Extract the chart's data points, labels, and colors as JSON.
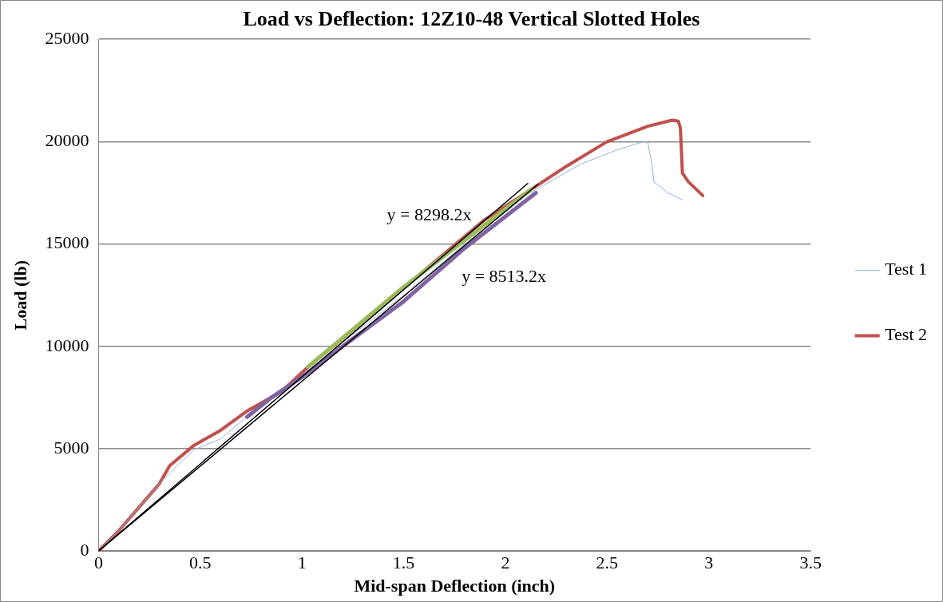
{
  "chart_data": {
    "type": "line",
    "title": "Load vs Deflection: 12Z10-48 Vertical Slotted Holes",
    "xlabel": "Mid-span Deflection (inch)",
    "ylabel": "Load (lb)",
    "xlim": [
      0,
      3.5
    ],
    "xticks": [
      0,
      0.5,
      1,
      1.5,
      2,
      2.5,
      3,
      3.5
    ],
    "ylim": [
      0,
      25000
    ],
    "yticks": [
      0,
      5000,
      10000,
      15000,
      20000,
      25000
    ],
    "grid": "y",
    "legend": "right",
    "marker": "none",
    "line_style": "solid",
    "series": [
      {
        "name": "Test 1",
        "color": "#95b3d7",
        "x": [
          0,
          0.1,
          0.2,
          0.3,
          0.4,
          0.47,
          0.6,
          0.72,
          0.85,
          1.0,
          1.2,
          1.5,
          1.8,
          2.115,
          2.37,
          2.55,
          2.68,
          2.7,
          2.72,
          2.73,
          2.8,
          2.87
        ],
        "values": [
          0,
          1000,
          2150,
          3300,
          4300,
          4950,
          5480,
          6490,
          7500,
          8600,
          10200,
          12500,
          15000,
          17460,
          18900,
          19600,
          20000,
          19960,
          18900,
          18030,
          17500,
          17150
        ]
      },
      {
        "name": "Test 2",
        "color": "#c0504d",
        "x": [
          0,
          0.1,
          0.2,
          0.3,
          0.35,
          0.47,
          0.6,
          0.73,
          0.9,
          1.03,
          1.3,
          1.6,
          1.9,
          2.115,
          2.3,
          2.5,
          2.7,
          2.82,
          2.85,
          2.86,
          2.87,
          2.9,
          2.97
        ],
        "values": [
          0,
          1000,
          2150,
          3300,
          4170,
          5170,
          5900,
          6840,
          7800,
          9000,
          11200,
          13700,
          16200,
          17590,
          18800,
          20000,
          20750,
          21050,
          21000,
          20660,
          18460,
          18030,
          17370
        ]
      },
      {
        "color": "#9bbb59",
        "x": [
          1.03,
          1.5,
          2.13
        ],
        "values": [
          9000,
          12900,
          17700
        ]
      },
      {
        "color": "#8064a2",
        "x": [
          0.73,
          0.85,
          1.0,
          1.2,
          1.5,
          1.8,
          2.15
        ],
        "values": [
          6550,
          7500,
          8500,
          10000,
          12200,
          14800,
          17500
        ]
      },
      {
        "color": "#000000",
        "x": [
          0,
          2.11
        ],
        "values": [
          0,
          17960
        ]
      },
      {
        "color": "#000000",
        "x": [
          0,
          2.16
        ],
        "values": [
          0,
          17920
        ]
      }
    ],
    "annotations": [
      "y = 8298.2x",
      "y = 8513.2x"
    ]
  }
}
